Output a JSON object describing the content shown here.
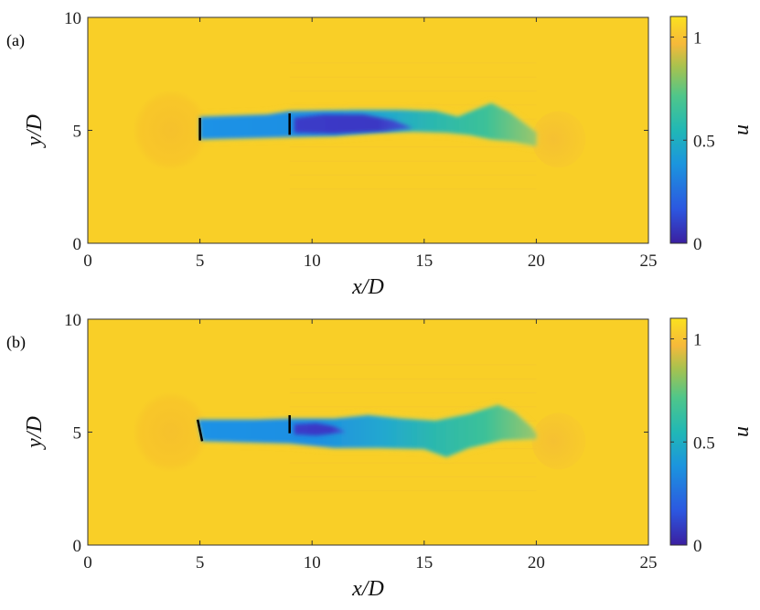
{
  "chart_data": [
    {
      "type": "heatmap",
      "panel_label": "(a)",
      "xlabel": "x/D",
      "ylabel": "y/D",
      "xlim": [
        0,
        25
      ],
      "ylim": [
        0,
        10
      ],
      "x_ticks": [
        "0",
        "5",
        "10",
        "15",
        "20",
        "25"
      ],
      "y_ticks": [
        "0",
        "5",
        "10"
      ],
      "colorbar": {
        "label": "u",
        "range": [
          0,
          1.1
        ],
        "ticks": [
          "0",
          "0.5",
          "1"
        ]
      },
      "background_value": 1.0,
      "turbines": [
        {
          "x": 5.0,
          "y_bottom": 4.55,
          "y_top": 5.55
        },
        {
          "x": 9.0,
          "y_bottom": 4.8,
          "y_top": 5.75
        }
      ],
      "wake": {
        "upper_edge": [
          [
            5.0,
            5.6
          ],
          [
            8.0,
            5.7
          ],
          [
            9.0,
            5.85
          ],
          [
            12.0,
            5.9
          ],
          [
            14.0,
            5.9
          ],
          [
            15.5,
            5.85
          ],
          [
            16.5,
            5.6
          ],
          [
            17.5,
            6.0
          ],
          [
            18.0,
            6.2
          ],
          [
            18.8,
            5.8
          ],
          [
            19.6,
            5.2
          ],
          [
            20.0,
            4.9
          ]
        ],
        "lower_edge": [
          [
            20.0,
            4.3
          ],
          [
            19.0,
            4.5
          ],
          [
            18.0,
            4.6
          ],
          [
            17.0,
            4.8
          ],
          [
            16.0,
            4.9
          ],
          [
            14.5,
            4.95
          ],
          [
            13.0,
            4.9
          ],
          [
            11.0,
            4.75
          ],
          [
            9.0,
            4.7
          ],
          [
            7.0,
            4.65
          ],
          [
            5.0,
            4.6
          ]
        ],
        "deficit_core": [
          [
            9.2,
            5.55
          ],
          [
            10.5,
            5.7
          ],
          [
            12.3,
            5.7
          ],
          [
            13.6,
            5.45
          ],
          [
            14.5,
            5.1
          ],
          [
            13.2,
            4.95
          ],
          [
            11.0,
            4.85
          ],
          [
            9.2,
            4.9
          ]
        ]
      }
    },
    {
      "type": "heatmap",
      "panel_label": "(b)",
      "xlabel": "x/D",
      "ylabel": "y/D",
      "xlim": [
        0,
        25
      ],
      "ylim": [
        0,
        10
      ],
      "x_ticks": [
        "0",
        "5",
        "10",
        "15",
        "20",
        "25"
      ],
      "y_ticks": [
        "0",
        "5",
        "10"
      ],
      "colorbar": {
        "label": "u",
        "range": [
          0,
          1.1
        ],
        "ticks": [
          "0",
          "0.5",
          "1"
        ]
      },
      "background_value": 1.0,
      "turbines": [
        {
          "x_bottom": 5.1,
          "x_top": 4.9,
          "y_bottom": 4.6,
          "y_top": 5.55
        },
        {
          "x": 9.0,
          "y_bottom": 4.95,
          "y_top": 5.75
        }
      ],
      "wake": {
        "upper_edge": [
          [
            4.9,
            5.55
          ],
          [
            7.5,
            5.55
          ],
          [
            9.0,
            5.6
          ],
          [
            11.0,
            5.6
          ],
          [
            12.5,
            5.75
          ],
          [
            14.0,
            5.6
          ],
          [
            15.5,
            5.5
          ],
          [
            17.0,
            5.8
          ],
          [
            18.3,
            6.2
          ],
          [
            19.0,
            5.9
          ],
          [
            19.8,
            5.2
          ],
          [
            20.0,
            4.9
          ]
        ],
        "lower_edge": [
          [
            20.0,
            4.7
          ],
          [
            18.5,
            4.65
          ],
          [
            17.0,
            4.3
          ],
          [
            16.0,
            3.9
          ],
          [
            15.0,
            4.25
          ],
          [
            13.0,
            4.3
          ],
          [
            11.0,
            4.3
          ],
          [
            9.0,
            4.5
          ],
          [
            7.0,
            4.55
          ],
          [
            5.1,
            4.6
          ]
        ],
        "deficit_core": [
          [
            9.2,
            5.35
          ],
          [
            10.2,
            5.4
          ],
          [
            11.0,
            5.25
          ],
          [
            11.5,
            5.0
          ],
          [
            10.2,
            4.85
          ],
          [
            9.2,
            4.9
          ]
        ]
      }
    }
  ]
}
